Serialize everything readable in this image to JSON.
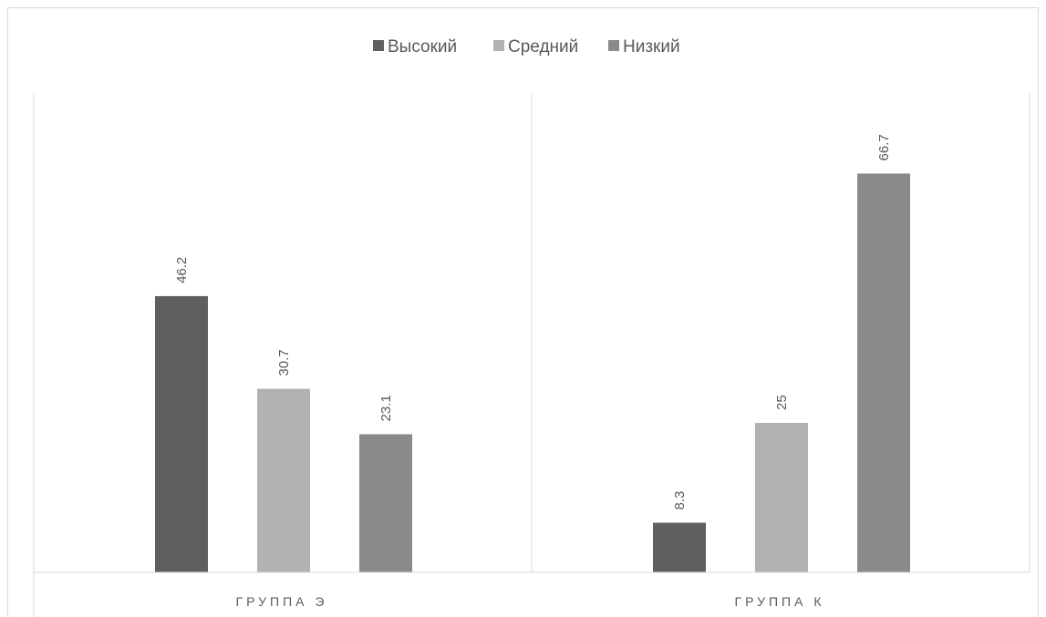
{
  "chart_data": {
    "type": "bar",
    "categories": [
      "ГРУППА Э",
      "ГРУППА К"
    ],
    "series": [
      {
        "name": "Высокий",
        "values": [
          46.2,
          8.3
        ],
        "color": "#5f5f5f"
      },
      {
        "name": "Средний",
        "values": [
          30.7,
          25
        ],
        "color": "#b2b2b2"
      },
      {
        "name": "Низкий",
        "values": [
          23.1,
          66.7
        ],
        "color": "#8a8a8a"
      }
    ],
    "value_labels": [
      [
        "46.2",
        "8.3"
      ],
      [
        "30.7",
        "25"
      ],
      [
        "23.1",
        "66.7"
      ]
    ],
    "ylim": [
      0,
      80
    ],
    "grid": false,
    "legend_position": "top",
    "value_label_orientation": "vertical"
  }
}
